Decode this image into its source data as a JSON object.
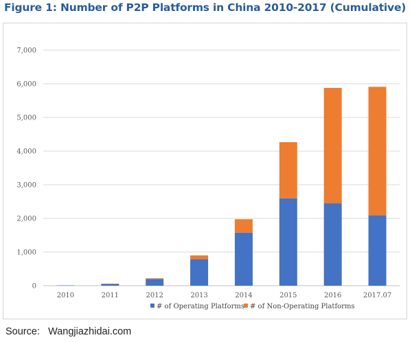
{
  "title": "Figure 1: Number of P2P Platforms in China 2010-2017 (Cumulative)",
  "source_label": "Source:",
  "source_value": "Wangjiazhidai.com",
  "chart_data": {
    "type": "bar",
    "stacked": true,
    "categories": [
      "2010",
      "2011",
      "2012",
      "2013",
      "2014",
      "2015",
      "2016",
      "2017.07"
    ],
    "series": [
      {
        "name": "# of Operating Platforms",
        "color": "#4472c4",
        "values": [
          10,
          50,
          200,
          790,
          1575,
          2595,
          2448,
          2090
        ]
      },
      {
        "name": "# of Non-Operating Platforms",
        "color": "#ed7d31",
        "values": [
          0,
          10,
          20,
          110,
          400,
          1670,
          3430,
          3820
        ]
      }
    ],
    "ylim": [
      0,
      7000
    ],
    "yticks": [
      "0",
      "1,000",
      "2,000",
      "3,000",
      "4,000",
      "5,000",
      "6,000",
      "7,000"
    ],
    "grid": true,
    "legend_position": "bottom",
    "xlabel": "",
    "ylabel": ""
  }
}
